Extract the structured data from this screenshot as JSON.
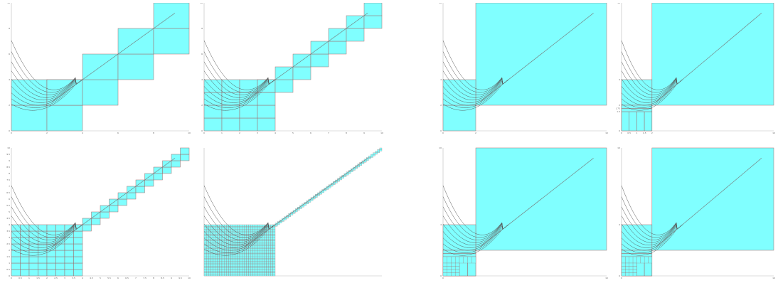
{
  "chart_data": [
    {
      "type": "line",
      "title": "",
      "note": "regular grid of cells along the diagonal (cell size 2)",
      "xlim": [
        0,
        10
      ],
      "ylim": [
        0,
        10
      ],
      "x_ticks": [
        "0",
        "2",
        "4",
        "6",
        "8",
        "10"
      ],
      "y_ticks": [
        "0",
        "2",
        "4",
        "6",
        "8",
        "10"
      ],
      "cell_size": 2,
      "grid": true,
      "colors": {
        "cell_fill": "#80ffff",
        "cell_stroke": "#a06a6a",
        "curve": "#555555",
        "diagonal": "#777777"
      }
    },
    {
      "type": "line",
      "title": "",
      "note": "regular grid of cells along the diagonal (cell size 1)",
      "xlim": [
        0,
        10
      ],
      "ylim": [
        0,
        10
      ],
      "x_ticks": [
        "0",
        "1",
        "2",
        "3",
        "4",
        "5",
        "6",
        "7",
        "8",
        "9",
        "10"
      ],
      "y_ticks": [
        "0",
        "2",
        "4",
        "6",
        "8",
        "10"
      ],
      "cell_size": 1,
      "grid": true,
      "colors": {
        "cell_fill": "#80ffff",
        "cell_stroke": "#a06a6a",
        "curve": "#555555",
        "diagonal": "#777777"
      }
    },
    {
      "type": "line",
      "title": "",
      "note": "regular grid of cells along the diagonal (cell size 0.5)",
      "xlim": [
        0,
        10
      ],
      "ylim": [
        0,
        10
      ],
      "x_ticks": [
        "0",
        "0.5",
        "1",
        "1.5",
        "2",
        "2.5",
        "3",
        "3.5",
        "4",
        "4.5",
        "5",
        "5.5",
        "6",
        "6.5",
        "7",
        "7.5",
        "8",
        "8.5",
        "9",
        "9.5",
        "10"
      ],
      "y_ticks": [
        "0",
        "0.5",
        "1",
        "1.5",
        "2",
        "2.5",
        "3",
        "3.5",
        "4",
        "4.5",
        "5",
        "5.5",
        "6",
        "6.5",
        "7",
        "7.5",
        "8",
        "8.5",
        "9",
        "9.5",
        "10"
      ],
      "cell_size": 0.5,
      "grid": true,
      "colors": {
        "cell_fill": "#80ffff",
        "cell_stroke": "#a06a6a",
        "curve": "#555555",
        "diagonal": "#777777"
      }
    },
    {
      "type": "line",
      "title": "",
      "note": "regular grid of cells along the diagonal (cell size 0.125)",
      "xlim": [
        0,
        10
      ],
      "ylim": [
        0,
        10
      ],
      "x_ticks": [],
      "y_ticks": [],
      "cell_size": 0.125,
      "grid": true,
      "colors": {
        "cell_fill": "#80ffff",
        "cell_stroke": "#a06a6a",
        "curve": "#555555",
        "diagonal": "#777777"
      }
    },
    {
      "type": "line",
      "title": "",
      "note": "adaptive cells: one large cell plus refinement near the curves",
      "xlim": [
        0,
        10
      ],
      "ylim": [
        0,
        10
      ],
      "x_ticks": [
        "0",
        "2",
        "10"
      ],
      "y_ticks": [
        "0",
        "2",
        "4",
        "10"
      ],
      "grid": true,
      "colors": {
        "cell_fill": "#80ffff",
        "cell_stroke": "#a06a6a",
        "curve": "#555555",
        "diagonal": "#777777"
      }
    },
    {
      "type": "line",
      "title": "",
      "note": "adaptive cells, finer refinement",
      "xlim": [
        0,
        10
      ],
      "ylim": [
        0,
        10
      ],
      "x_ticks": [
        "0",
        "0.5",
        "1",
        "1.5",
        "2",
        "10"
      ],
      "y_ticks": [
        "0",
        "1.5",
        "1.75",
        "2",
        "4",
        "10"
      ],
      "grid": true,
      "colors": {
        "cell_fill": "#80ffff",
        "cell_stroke": "#a06a6a",
        "curve": "#555555",
        "diagonal": "#777777"
      }
    },
    {
      "type": "line",
      "title": "",
      "note": "adaptive cells, further refinement",
      "xlim": [
        0,
        10
      ],
      "ylim": [
        0,
        10
      ],
      "x_ticks": [
        "0",
        "10"
      ],
      "y_ticks": [
        "0",
        "4",
        "10"
      ],
      "grid": true,
      "colors": {
        "cell_fill": "#80ffff",
        "cell_stroke": "#a06a6a",
        "curve": "#555555",
        "diagonal": "#777777"
      }
    },
    {
      "type": "line",
      "title": "",
      "note": "adaptive cells, finest refinement",
      "xlim": [
        0,
        10
      ],
      "ylim": [
        0,
        10
      ],
      "x_ticks": [
        "0",
        "10"
      ],
      "y_ticks": [
        "0",
        "4",
        "10"
      ],
      "grid": true,
      "colors": {
        "cell_fill": "#80ffff",
        "cell_stroke": "#a06a6a",
        "curve": "#555555",
        "diagonal": "#777777"
      }
    }
  ]
}
